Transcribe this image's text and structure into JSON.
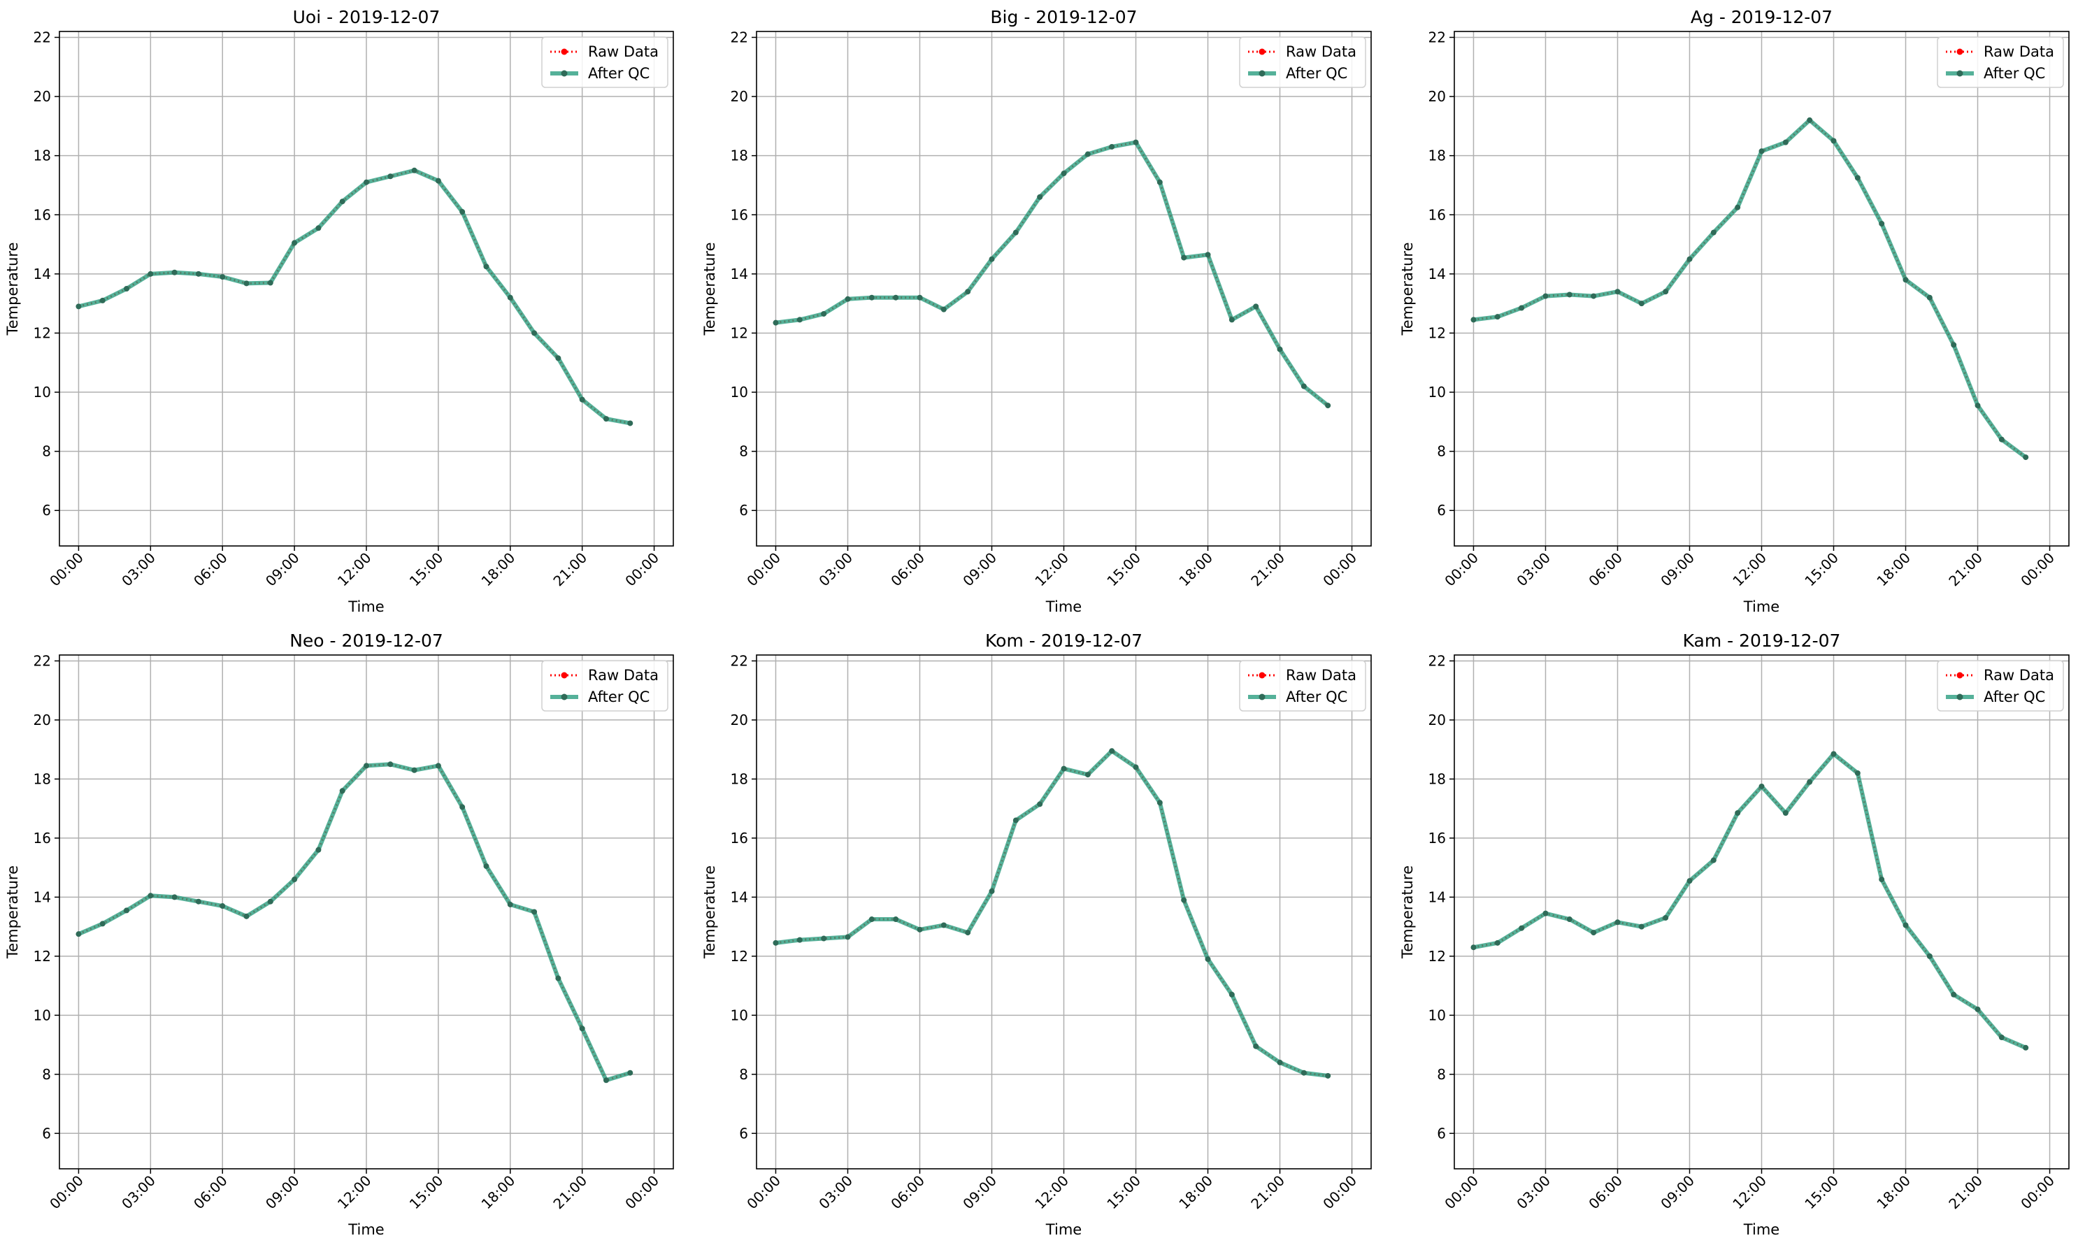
{
  "figure": {
    "legend_labels": [
      "Raw Data",
      "After QC"
    ],
    "colors": {
      "raw": "#ff0000",
      "qc": "#2a9d7f",
      "qc_marker": "#2f6b58",
      "grid": "#b0b0b0"
    }
  },
  "chart_data": [
    {
      "type": "line",
      "title": "Uoi - 2019-12-07",
      "xlabel": "Time",
      "ylabel": "Temperature",
      "ylim": [
        4.8,
        22.2
      ],
      "yticks": [
        6,
        8,
        10,
        12,
        14,
        16,
        18,
        20,
        22
      ],
      "xlim": [
        -0.8,
        24.8
      ],
      "xticks": [
        0,
        3,
        6,
        9,
        12,
        15,
        18,
        21,
        24
      ],
      "xticklabels": [
        "00:00",
        "03:00",
        "06:00",
        "09:00",
        "12:00",
        "15:00",
        "18:00",
        "21:00",
        "00:00"
      ],
      "grid": true,
      "legend": "top-right",
      "x": [
        0,
        1,
        2,
        3,
        4,
        5,
        6,
        7,
        8,
        9,
        10,
        11,
        12,
        13,
        14,
        15,
        16,
        17,
        18,
        19,
        20,
        21,
        22,
        23
      ],
      "series": [
        {
          "name": "Raw Data",
          "values": [
            12.9,
            13.1,
            13.5,
            14.0,
            14.05,
            14.0,
            13.9,
            13.68,
            13.7,
            15.05,
            15.55,
            16.45,
            17.1,
            17.3,
            17.5,
            17.15,
            16.1,
            14.25,
            13.2,
            12.0,
            11.15,
            9.75,
            9.1,
            8.95
          ]
        },
        {
          "name": "After QC",
          "values": [
            12.9,
            13.1,
            13.5,
            14.0,
            14.05,
            14.0,
            13.9,
            13.68,
            13.7,
            15.05,
            15.55,
            16.45,
            17.1,
            17.3,
            17.5,
            17.15,
            16.1,
            14.25,
            13.2,
            12.0,
            11.15,
            9.75,
            9.1,
            8.95
          ]
        }
      ]
    },
    {
      "type": "line",
      "title": "Big - 2019-12-07",
      "xlabel": "Time",
      "ylabel": "Temperature",
      "ylim": [
        4.8,
        22.2
      ],
      "yticks": [
        6,
        8,
        10,
        12,
        14,
        16,
        18,
        20,
        22
      ],
      "xlim": [
        -0.8,
        24.8
      ],
      "xticks": [
        0,
        3,
        6,
        9,
        12,
        15,
        18,
        21,
        24
      ],
      "xticklabels": [
        "00:00",
        "03:00",
        "06:00",
        "09:00",
        "12:00",
        "15:00",
        "18:00",
        "21:00",
        "00:00"
      ],
      "grid": true,
      "legend": "top-right",
      "x": [
        0,
        1,
        2,
        3,
        4,
        5,
        6,
        7,
        8,
        9,
        10,
        11,
        12,
        13,
        14,
        15,
        16,
        17,
        18,
        19,
        20,
        21,
        22,
        23
      ],
      "series": [
        {
          "name": "Raw Data",
          "values": [
            12.35,
            12.45,
            12.65,
            13.15,
            13.2,
            13.2,
            13.2,
            12.8,
            13.4,
            14.5,
            15.4,
            16.6,
            17.4,
            18.05,
            18.3,
            18.45,
            17.1,
            14.55,
            14.65,
            12.45,
            12.9,
            11.45,
            10.2,
            9.55
          ]
        },
        {
          "name": "After QC",
          "values": [
            12.35,
            12.45,
            12.65,
            13.15,
            13.2,
            13.2,
            13.2,
            12.8,
            13.4,
            14.5,
            15.4,
            16.6,
            17.4,
            18.05,
            18.3,
            18.45,
            17.1,
            14.55,
            14.65,
            12.45,
            12.9,
            11.45,
            10.2,
            9.55
          ]
        }
      ]
    },
    {
      "type": "line",
      "title": "Ag - 2019-12-07",
      "xlabel": "Time",
      "ylabel": "Temperature",
      "ylim": [
        4.8,
        22.2
      ],
      "yticks": [
        6,
        8,
        10,
        12,
        14,
        16,
        18,
        20,
        22
      ],
      "xlim": [
        -0.8,
        24.8
      ],
      "xticks": [
        0,
        3,
        6,
        9,
        12,
        15,
        18,
        21,
        24
      ],
      "xticklabels": [
        "00:00",
        "03:00",
        "06:00",
        "09:00",
        "12:00",
        "15:00",
        "18:00",
        "21:00",
        "00:00"
      ],
      "grid": true,
      "legend": "top-right",
      "x": [
        0,
        1,
        2,
        3,
        4,
        5,
        6,
        7,
        8,
        9,
        10,
        11,
        12,
        13,
        14,
        15,
        16,
        17,
        18,
        19,
        20,
        21,
        22,
        23
      ],
      "series": [
        {
          "name": "Raw Data",
          "values": [
            12.45,
            12.55,
            12.85,
            13.25,
            13.3,
            13.25,
            13.4,
            13.0,
            13.4,
            14.5,
            15.4,
            16.25,
            18.15,
            18.45,
            19.2,
            18.5,
            17.25,
            15.7,
            13.8,
            13.2,
            11.6,
            9.55,
            8.4,
            7.8
          ]
        },
        {
          "name": "After QC",
          "values": [
            12.45,
            12.55,
            12.85,
            13.25,
            13.3,
            13.25,
            13.4,
            13.0,
            13.4,
            14.5,
            15.4,
            16.25,
            18.15,
            18.45,
            19.2,
            18.5,
            17.25,
            15.7,
            13.8,
            13.2,
            11.6,
            9.55,
            8.4,
            7.8
          ]
        }
      ]
    },
    {
      "type": "line",
      "title": "Neo - 2019-12-07",
      "xlabel": "Time",
      "ylabel": "Temperature",
      "ylim": [
        4.8,
        22.2
      ],
      "yticks": [
        6,
        8,
        10,
        12,
        14,
        16,
        18,
        20,
        22
      ],
      "xlim": [
        -0.8,
        24.8
      ],
      "xticks": [
        0,
        3,
        6,
        9,
        12,
        15,
        18,
        21,
        24
      ],
      "xticklabels": [
        "00:00",
        "03:00",
        "06:00",
        "09:00",
        "12:00",
        "15:00",
        "18:00",
        "21:00",
        "00:00"
      ],
      "grid": true,
      "legend": "top-right",
      "x": [
        0,
        1,
        2,
        3,
        4,
        5,
        6,
        7,
        8,
        9,
        10,
        11,
        12,
        13,
        14,
        15,
        16,
        17,
        18,
        19,
        20,
        21,
        22,
        23
      ],
      "series": [
        {
          "name": "Raw Data",
          "values": [
            12.75,
            13.1,
            13.55,
            14.05,
            14.0,
            13.85,
            13.7,
            13.35,
            13.85,
            14.6,
            15.6,
            17.6,
            18.45,
            18.5,
            18.3,
            18.45,
            17.05,
            15.05,
            13.75,
            13.5,
            11.25,
            9.55,
            7.8,
            8.05
          ]
        },
        {
          "name": "After QC",
          "values": [
            12.75,
            13.1,
            13.55,
            14.05,
            14.0,
            13.85,
            13.7,
            13.35,
            13.85,
            14.6,
            15.6,
            17.6,
            18.45,
            18.5,
            18.3,
            18.45,
            17.05,
            15.05,
            13.75,
            13.5,
            11.25,
            9.55,
            7.8,
            8.05
          ]
        }
      ]
    },
    {
      "type": "line",
      "title": "Kom - 2019-12-07",
      "xlabel": "Time",
      "ylabel": "Temperature",
      "ylim": [
        4.8,
        22.2
      ],
      "yticks": [
        6,
        8,
        10,
        12,
        14,
        16,
        18,
        20,
        22
      ],
      "xlim": [
        -0.8,
        24.8
      ],
      "xticks": [
        0,
        3,
        6,
        9,
        12,
        15,
        18,
        21,
        24
      ],
      "xticklabels": [
        "00:00",
        "03:00",
        "06:00",
        "09:00",
        "12:00",
        "15:00",
        "18:00",
        "21:00",
        "00:00"
      ],
      "grid": true,
      "legend": "top-right",
      "x": [
        0,
        1,
        2,
        3,
        4,
        5,
        6,
        7,
        8,
        9,
        10,
        11,
        12,
        13,
        14,
        15,
        16,
        17,
        18,
        19,
        20,
        21,
        22,
        23
      ],
      "series": [
        {
          "name": "Raw Data",
          "values": [
            12.45,
            12.55,
            12.6,
            12.65,
            13.25,
            13.25,
            12.9,
            13.05,
            12.8,
            14.2,
            16.6,
            17.15,
            18.35,
            18.15,
            18.95,
            18.4,
            17.2,
            13.9,
            11.9,
            10.7,
            8.95,
            8.4,
            8.05,
            7.95
          ]
        },
        {
          "name": "After QC",
          "values": [
            12.45,
            12.55,
            12.6,
            12.65,
            13.25,
            13.25,
            12.9,
            13.05,
            12.8,
            14.2,
            16.6,
            17.15,
            18.35,
            18.15,
            18.95,
            18.4,
            17.2,
            13.9,
            11.9,
            10.7,
            8.95,
            8.4,
            8.05,
            7.95
          ]
        }
      ]
    },
    {
      "type": "line",
      "title": "Kam - 2019-12-07",
      "xlabel": "Time",
      "ylabel": "Temperature",
      "ylim": [
        4.8,
        22.2
      ],
      "yticks": [
        6,
        8,
        10,
        12,
        14,
        16,
        18,
        20,
        22
      ],
      "xlim": [
        -0.8,
        24.8
      ],
      "xticks": [
        0,
        3,
        6,
        9,
        12,
        15,
        18,
        21,
        24
      ],
      "xticklabels": [
        "00:00",
        "03:00",
        "06:00",
        "09:00",
        "12:00",
        "15:00",
        "18:00",
        "21:00",
        "00:00"
      ],
      "grid": true,
      "legend": "top-right",
      "x": [
        0,
        1,
        2,
        3,
        4,
        5,
        6,
        7,
        8,
        9,
        10,
        11,
        12,
        13,
        14,
        15,
        16,
        17,
        18,
        19,
        20,
        21,
        22,
        23
      ],
      "series": [
        {
          "name": "Raw Data",
          "values": [
            12.3,
            12.45,
            12.95,
            13.45,
            13.25,
            12.8,
            13.15,
            13.0,
            13.3,
            14.55,
            15.25,
            16.85,
            17.75,
            16.85,
            17.9,
            18.85,
            18.2,
            14.6,
            13.05,
            12.0,
            10.7,
            10.2,
            9.25,
            8.9
          ]
        },
        {
          "name": "After QC",
          "values": [
            12.3,
            12.45,
            12.95,
            13.45,
            13.25,
            12.8,
            13.15,
            13.0,
            13.3,
            14.55,
            15.25,
            16.85,
            17.75,
            16.85,
            17.9,
            18.85,
            18.2,
            14.6,
            13.05,
            12.0,
            10.7,
            10.2,
            9.25,
            8.9
          ]
        }
      ]
    }
  ]
}
